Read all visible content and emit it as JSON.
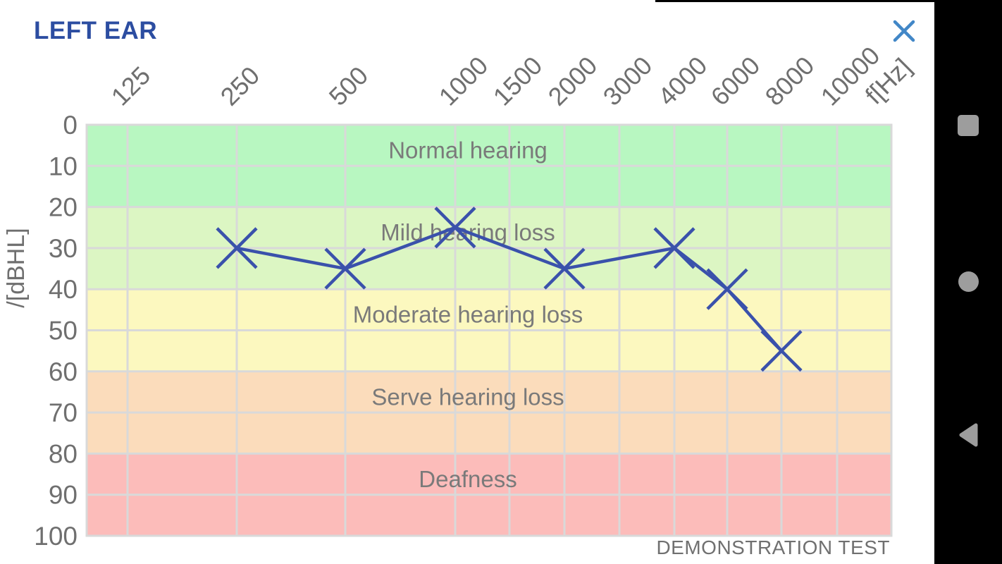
{
  "header": {
    "title": "LEFT EAR"
  },
  "colors": {
    "title": "#2c4da1",
    "close_icon": "#4287c7",
    "grid": "#d9d9d9",
    "series": "#3a51ab",
    "nav_icons": "#9d9d9d",
    "tick_text": "#6f6f6f",
    "band_text": "#7a7a7a"
  },
  "android_nav": {
    "icons": [
      "recents-square",
      "home-circle",
      "back-triangle-left"
    ]
  },
  "chart_data": {
    "type": "line",
    "title": "LEFT EAR",
    "x_ticks": [
      "125",
      "250",
      "500",
      "1000",
      "1500",
      "2000",
      "3000",
      "4000",
      "6000",
      "8000",
      "10000"
    ],
    "x_axis_label": "f[Hz]",
    "y_ticks": [
      "0",
      "10",
      "20",
      "30",
      "40",
      "50",
      "60",
      "70",
      "80",
      "90",
      "100"
    ],
    "y_axis_label": "/[dBHL]",
    "ylim": [
      0,
      100
    ],
    "y_inverted_down": true,
    "grid": true,
    "legend_position": "none",
    "bands": [
      {
        "label": "Normal hearing",
        "from": 0,
        "to": 20,
        "color": "#b8f7c1"
      },
      {
        "label": "Mild hearing loss",
        "from": 20,
        "to": 40,
        "color": "#dcf6c3"
      },
      {
        "label": "Moderate hearing loss",
        "from": 40,
        "to": 60,
        "color": "#fcf8bf"
      },
      {
        "label": "Serve hearing loss",
        "from": 60,
        "to": 80,
        "color": "#fbdcbb"
      },
      {
        "label": "Deafness",
        "from": 80,
        "to": 100,
        "color": "#fcbcba"
      }
    ],
    "series": [
      {
        "name": "left-ear-threshold",
        "marker": "x",
        "color": "#3a51ab",
        "points": [
          {
            "freq": "250",
            "db": 30
          },
          {
            "freq": "500",
            "db": 35
          },
          {
            "freq": "1000",
            "db": 25
          },
          {
            "freq": "2000",
            "db": 35
          },
          {
            "freq": "4000",
            "db": 30
          },
          {
            "freq": "6000",
            "db": 40
          },
          {
            "freq": "8000",
            "db": 55
          }
        ]
      }
    ],
    "annotation": "DEMONSTRATION TEST"
  }
}
